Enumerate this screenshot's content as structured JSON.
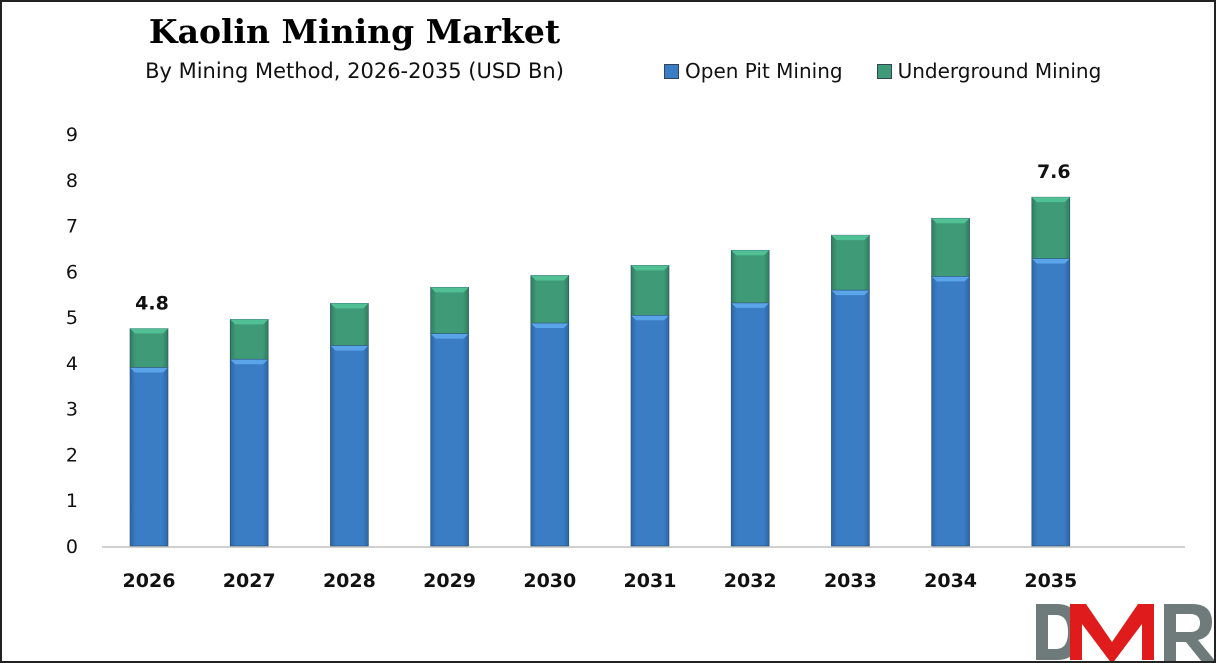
{
  "chart_data": {
    "type": "bar",
    "stacked": true,
    "title": "Kaolin Mining Market",
    "subtitle": "By Mining Method, 2026-2035 (USD Bn)",
    "xlabel": "",
    "ylabel": "",
    "ylim": [
      0,
      9
    ],
    "yticks": [
      "0",
      "1",
      "2",
      "3",
      "4",
      "5",
      "6",
      "7",
      "8",
      "9"
    ],
    "grid": false,
    "legend_position": "top-right",
    "categories": [
      "2026",
      "2027",
      "2028",
      "2029",
      "2030",
      "2031",
      "2032",
      "2033",
      "2034",
      "2035"
    ],
    "series": [
      {
        "name": "Open Pit Mining",
        "color": "#3a7dc4",
        "values": [
          3.9,
          4.08,
          4.38,
          4.64,
          4.87,
          5.04,
          5.31,
          5.59,
          5.89,
          6.28
        ]
      },
      {
        "name": "Underground Mining",
        "color": "#3f9a78",
        "values": [
          0.85,
          0.87,
          0.92,
          1.01,
          1.04,
          1.09,
          1.15,
          1.2,
          1.27,
          1.34
        ]
      }
    ],
    "data_labels": [
      {
        "category": "2026",
        "text": "4.8"
      },
      {
        "category": "2035",
        "text": "7.6"
      }
    ]
  },
  "logo": {
    "text": "DMR",
    "colors": {
      "gray": "#6f7b7b",
      "red": "#e01b1b"
    }
  }
}
